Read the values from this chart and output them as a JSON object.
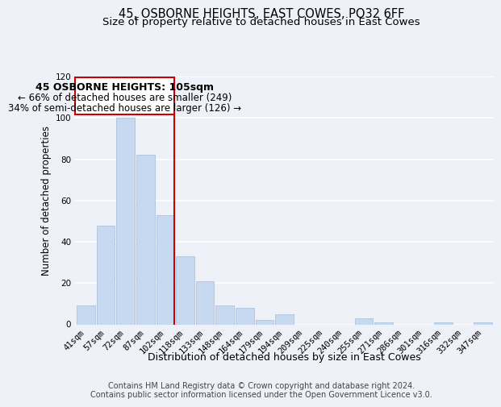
{
  "title": "45, OSBORNE HEIGHTS, EAST COWES, PO32 6FF",
  "subtitle": "Size of property relative to detached houses in East Cowes",
  "xlabel": "Distribution of detached houses by size in East Cowes",
  "ylabel": "Number of detached properties",
  "bar_labels": [
    "41sqm",
    "57sqm",
    "72sqm",
    "87sqm",
    "102sqm",
    "118sqm",
    "133sqm",
    "148sqm",
    "164sqm",
    "179sqm",
    "194sqm",
    "209sqm",
    "225sqm",
    "240sqm",
    "255sqm",
    "271sqm",
    "286sqm",
    "301sqm",
    "316sqm",
    "332sqm",
    "347sqm"
  ],
  "bar_values": [
    9,
    48,
    100,
    82,
    53,
    33,
    21,
    9,
    8,
    2,
    5,
    0,
    0,
    0,
    3,
    1,
    0,
    0,
    1,
    0,
    1
  ],
  "bar_color": "#c6d9f0",
  "vline_after_index": 4,
  "vline_color": "#cc0000",
  "annotation_title": "45 OSBORNE HEIGHTS: 105sqm",
  "annotation_line1": "← 66% of detached houses are smaller (249)",
  "annotation_line2": "34% of semi-detached houses are larger (126) →",
  "annotation_box_facecolor": "#ffffff",
  "annotation_box_edgecolor": "#cc0000",
  "ylim": [
    0,
    120
  ],
  "yticks": [
    0,
    20,
    40,
    60,
    80,
    100,
    120
  ],
  "footer1": "Contains HM Land Registry data © Crown copyright and database right 2024.",
  "footer2": "Contains public sector information licensed under the Open Government Licence v3.0.",
  "background_color": "#eef2f8",
  "grid_color": "#ffffff",
  "title_fontsize": 10.5,
  "subtitle_fontsize": 9.5,
  "xlabel_fontsize": 9,
  "ylabel_fontsize": 8.5,
  "tick_fontsize": 7.5,
  "annotation_title_fontsize": 9,
  "annotation_body_fontsize": 8.5,
  "footer_fontsize": 7
}
